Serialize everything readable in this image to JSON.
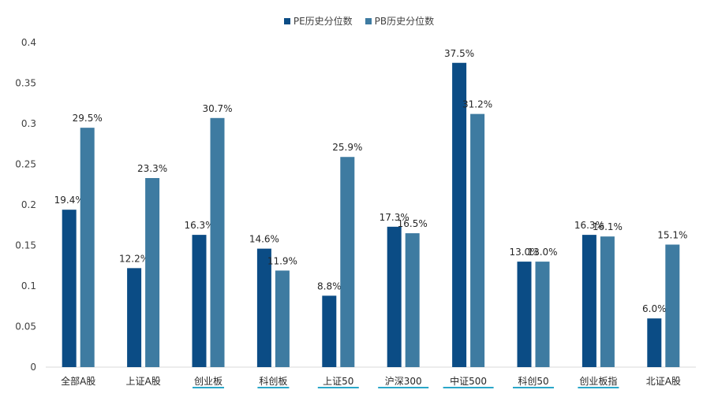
{
  "chart_data": {
    "type": "bar",
    "categories": [
      "全部A股",
      "上证A股",
      "创业板",
      "科创板",
      "上证50",
      "沪深300",
      "中证500",
      "科创50",
      "创业板指",
      "北证A股"
    ],
    "series": [
      {
        "name": "PE历史分位数",
        "color": "#0B4C85",
        "values": [
          0.194,
          0.122,
          0.163,
          0.146,
          0.088,
          0.173,
          0.375,
          0.13,
          0.163,
          0.06
        ],
        "labels": [
          "19.4%",
          "12.2%",
          "16.3%",
          "14.6%",
          "8.8%",
          "17.3%",
          "37.5%",
          "13.0%",
          "16.3%",
          "6.0%"
        ]
      },
      {
        "name": "PB历史分位数",
        "color": "#3E7BA1",
        "values": [
          0.295,
          0.233,
          0.307,
          0.119,
          0.259,
          0.165,
          0.312,
          0.13,
          0.161,
          0.151
        ],
        "labels": [
          "29.5%",
          "23.3%",
          "30.7%",
          "11.9%",
          "25.9%",
          "16.5%",
          "31.2%",
          "13.0%",
          "16.1%",
          "15.1%"
        ]
      }
    ],
    "ylim": [
      0,
      0.4
    ],
    "yticks": [
      "0",
      "0.05",
      "0.1",
      "0.15",
      "0.2",
      "0.25",
      "0.3",
      "0.35",
      "0.4"
    ],
    "ytick_values": [
      0,
      0.05,
      0.1,
      0.15,
      0.2,
      0.25,
      0.3,
      0.35,
      0.4
    ],
    "grid": false,
    "legend_position": "top-center",
    "underlined_categories": [
      "创业板",
      "科创板",
      "上证50",
      "沪深300",
      "中证500",
      "科创50",
      "创业板指"
    ],
    "underline_color": "#2AA7C9"
  }
}
